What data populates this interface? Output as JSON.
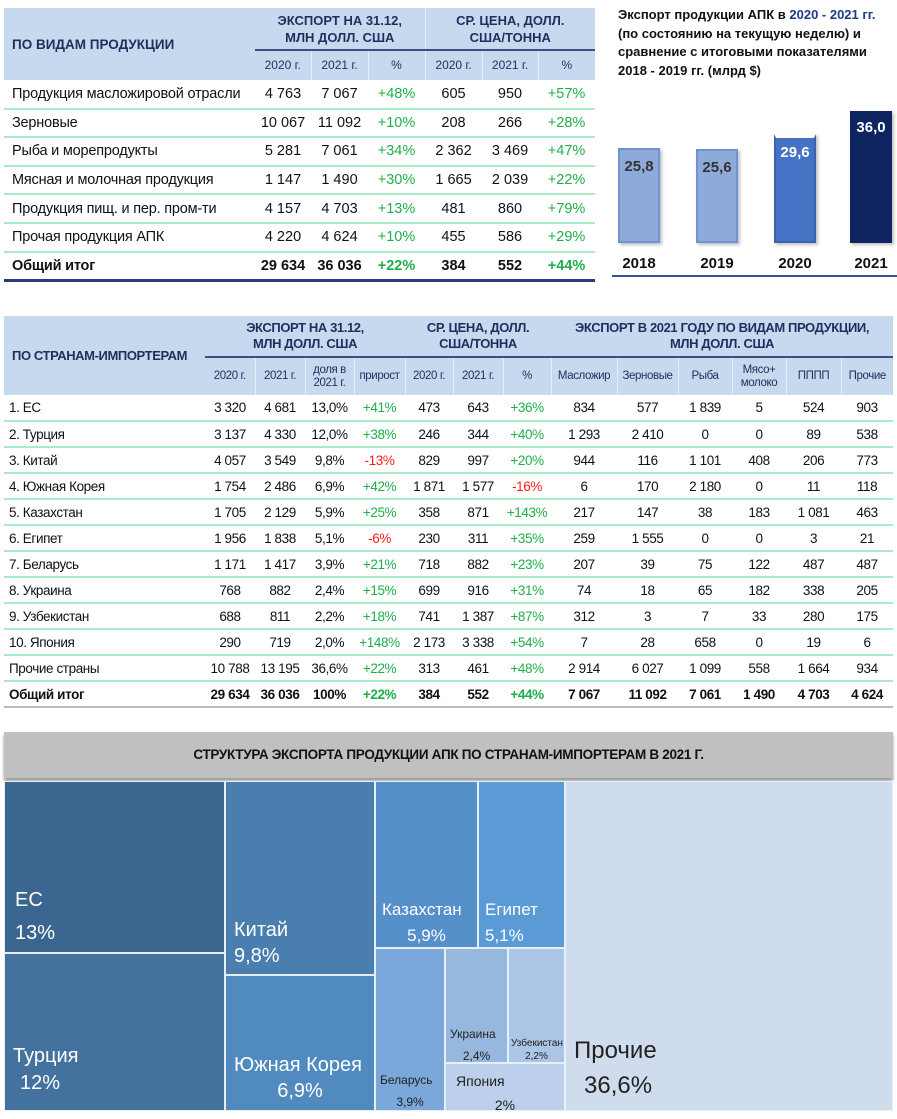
{
  "products_table": {
    "title": "ПО ВИДАМ ПРОДУКЦИИ",
    "group_export": "ЭКСПОРТ НА 31.12, МЛН ДОЛЛ. США",
    "group_price": "СР. ЦЕНА, ДОЛЛ. США/ТОННА",
    "columns": [
      "2020 г.",
      "2021 г.",
      "%",
      "2020 г.",
      "2021 г.",
      "%"
    ],
    "rows": [
      [
        "Продукция масложировой отрасли",
        "4 763",
        "7 067",
        "+48%",
        "605",
        "950",
        "+57%"
      ],
      [
        "Зерновые",
        "10 067",
        "11 092",
        "+10%",
        "208",
        "266",
        "+28%"
      ],
      [
        "Рыба и морепродукты",
        "5 281",
        "7 061",
        "+34%",
        "2 362",
        "3 469",
        "+47%"
      ],
      [
        "Мясная и молочная продукция",
        "1 147",
        "1 490",
        "+30%",
        "1 665",
        "2 039",
        "+22%"
      ],
      [
        "Продукция пищ. и пер. пром-ти",
        "4 157",
        "4 703",
        "+13%",
        "481",
        "860",
        "+79%"
      ],
      [
        "Прочая продукция АПК",
        "4 220",
        "4 624",
        "+10%",
        "455",
        "586",
        "+29%"
      ]
    ],
    "total": [
      "Общий итог",
      "29 634",
      "36 036",
      "+22%",
      "384",
      "552",
      "+44%"
    ]
  },
  "chart_data": {
    "type": "bar",
    "title": "Экспорт продукции АПК в 2020 - 2021 гг. (по состоянию на текущую неделю) и сравнение с итоговыми показателями 2018 - 2019 гг. (млрд $)",
    "title_parts": [
      "Экспорт продукции АПК в ",
      "2020 - 2021 гг.",
      " (по состоянию на текущую неделю) и сравнение с итоговыми показателями 2018 - 2019 гг. (млрд $)"
    ],
    "categories": [
      "2018",
      "2019",
      "2020",
      "2021"
    ],
    "values": [
      25.8,
      25.6,
      29.6,
      36.0
    ],
    "labels": [
      "25,8",
      "25,6",
      "29,6",
      "36,0"
    ],
    "colors": [
      "#8eaadb",
      "#8eaadb",
      "#4472c4",
      "#0d2461"
    ],
    "xlabel": "",
    "ylabel": "",
    "ylim": [
      0,
      40
    ]
  },
  "countries_table": {
    "title": "ПО СТРАНАМ-ИМПОРТЕРАМ",
    "group_export": "ЭКСПОРТ НА 31.12, МЛН ДОЛЛ. США",
    "group_price": "СР. ЦЕНА, ДОЛЛ. США/ТОННА",
    "group_products": "ЭКСПОРТ В 2021 ГОДУ ПО ВИДАМ ПРОДУКЦИИ, МЛН ДОЛЛ. США",
    "columns": [
      "2020 г.",
      "2021 г.",
      "доля в 2021 г.",
      "прирост",
      "2020 г.",
      "2021 г.",
      "%",
      "Масложир",
      "Зерновые",
      "Рыба",
      "Мясо+ молоко",
      "ПППП",
      "Прочие"
    ],
    "rows": [
      [
        "1. ЕС",
        "3 320",
        "4 681",
        "13,0%",
        "+41%",
        "473",
        "643",
        "+36%",
        "834",
        "577",
        "1 839",
        "5",
        "524",
        "903"
      ],
      [
        "2. Турция",
        "3 137",
        "4 330",
        "12,0%",
        "+38%",
        "246",
        "344",
        "+40%",
        "1 293",
        "2 410",
        "0",
        "0",
        "89",
        "538"
      ],
      [
        "3. Китай",
        "4 057",
        "3 549",
        "9,8%",
        "-13%",
        "829",
        "997",
        "+20%",
        "944",
        "116",
        "1 101",
        "408",
        "206",
        "773"
      ],
      [
        "4. Южная Корея",
        "1 754",
        "2 486",
        "6,9%",
        "+42%",
        "1 871",
        "1 577",
        "-16%",
        "6",
        "170",
        "2 180",
        "0",
        "11",
        "118"
      ],
      [
        "5. Казахстан",
        "1 705",
        "2 129",
        "5,9%",
        "+25%",
        "358",
        "871",
        "+143%",
        "217",
        "147",
        "38",
        "183",
        "1 081",
        "463"
      ],
      [
        "6. Египет",
        "1 956",
        "1 838",
        "5,1%",
        "-6%",
        "230",
        "311",
        "+35%",
        "259",
        "1 555",
        "0",
        "0",
        "3",
        "21"
      ],
      [
        "7. Беларусь",
        "1 171",
        "1 417",
        "3,9%",
        "+21%",
        "718",
        "882",
        "+23%",
        "207",
        "39",
        "75",
        "122",
        "487",
        "487"
      ],
      [
        "8. Украина",
        "768",
        "882",
        "2,4%",
        "+15%",
        "699",
        "916",
        "+31%",
        "74",
        "18",
        "65",
        "182",
        "338",
        "205"
      ],
      [
        "9. Узбекистан",
        "688",
        "811",
        "2,2%",
        "+18%",
        "741",
        "1 387",
        "+87%",
        "312",
        "3",
        "7",
        "33",
        "280",
        "175"
      ],
      [
        "10. Япония",
        "290",
        "719",
        "2,0%",
        "+148%",
        "2 173",
        "3 338",
        "+54%",
        "7",
        "28",
        "658",
        "0",
        "19",
        "6"
      ],
      [
        "Прочие страны",
        "10 788",
        "13 195",
        "36,6%",
        "+22%",
        "313",
        "461",
        "+48%",
        "2 914",
        "6 027",
        "1 099",
        "558",
        "1 664",
        "934"
      ]
    ],
    "total": [
      "Общий итог",
      "29 634",
      "36 036",
      "100%",
      "+22%",
      "384",
      "552",
      "+44%",
      "7 067",
      "11 092",
      "7 061",
      "1 490",
      "4 703",
      "4 624"
    ]
  },
  "treemap": {
    "title": "СТРУКТУРА ЭКСПОРТА ПРОДУКЦИИ АПК ПО СТРАНАМ-ИМПОРТЕРАМ В 2021 Г.",
    "tiles": [
      {
        "name": "ЕС",
        "pct": "13%",
        "share": 13.0,
        "color": "#3a6690"
      },
      {
        "name": "Турция",
        "pct": "12%",
        "share": 12.0,
        "color": "#43729e"
      },
      {
        "name": "Китай",
        "pct": "9,8%",
        "share": 9.8,
        "color": "#4a7eaf"
      },
      {
        "name": "Южная Корея",
        "pct": "6,9%",
        "share": 6.9,
        "color": "#508abf"
      },
      {
        "name": "Казахстан",
        "pct": "5,9%",
        "share": 5.9,
        "color": "#5590cb"
      },
      {
        "name": "Египет",
        "pct": "5,1%",
        "share": 5.1,
        "color": "#5b9bd5"
      },
      {
        "name": "Беларусь",
        "pct": "3,9%",
        "share": 3.9,
        "color": "#7aa8da"
      },
      {
        "name": "Украина",
        "pct": "2,4%",
        "share": 2.4,
        "color": "#96b8df"
      },
      {
        "name": "Узбекистан",
        "pct": "2,2%",
        "share": 2.2,
        "color": "#abc5e6"
      },
      {
        "name": "Япония",
        "pct": "2%",
        "share": 2.0,
        "color": "#bcd0eb"
      },
      {
        "name": "Прочие",
        "pct": "36,6%",
        "share": 36.6,
        "color": "#cfdcee"
      }
    ]
  }
}
